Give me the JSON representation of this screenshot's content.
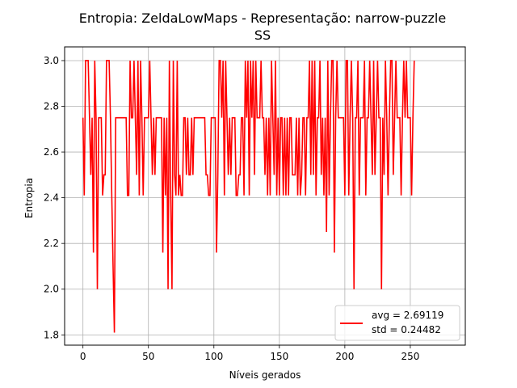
{
  "chart_data": {
    "type": "line",
    "title_line1": "Entropia: ZeldaLowMaps - Representação: narrow-puzzle",
    "title_line2": "SS",
    "xlabel": "Níveis gerados",
    "ylabel": "Entropia",
    "xlim": [
      -14,
      292
    ],
    "ylim": [
      1.755,
      3.06
    ],
    "xticks": [
      0,
      50,
      100,
      150,
      200,
      250
    ],
    "yticks": [
      1.8,
      2.0,
      2.2,
      2.4,
      2.6,
      2.8,
      3.0
    ],
    "grid": true,
    "legend_position": "lower right",
    "legend": {
      "line1": "avg = 2.69119",
      "line2": "std = 0.24482"
    },
    "series": [
      {
        "color": "#ff0000",
        "x_start": 0,
        "values": [
          2.75,
          2.41,
          3.0,
          3.0,
          3.0,
          2.75,
          2.5,
          2.75,
          2.16,
          3.0,
          2.75,
          2.0,
          2.75,
          2.75,
          2.75,
          2.41,
          2.5,
          2.5,
          3.0,
          3.0,
          3.0,
          2.75,
          2.41,
          2.1,
          1.81,
          2.75,
          2.75,
          2.75,
          2.75,
          2.75,
          2.75,
          2.75,
          2.75,
          2.75,
          2.41,
          2.41,
          3.0,
          2.75,
          2.75,
          3.0,
          2.75,
          2.5,
          3.0,
          2.41,
          3.0,
          2.75,
          2.41,
          2.75,
          2.75,
          2.75,
          2.75,
          3.0,
          2.75,
          2.5,
          2.75,
          2.5,
          2.75,
          2.75,
          2.75,
          2.75,
          2.75,
          2.16,
          2.75,
          2.41,
          2.75,
          2.0,
          3.0,
          2.41,
          2.0,
          3.0,
          2.5,
          2.41,
          3.0,
          2.41,
          2.5,
          2.41,
          2.41,
          2.75,
          2.75,
          2.5,
          2.75,
          2.5,
          2.5,
          2.75,
          2.5,
          2.75,
          2.75,
          2.75,
          2.75,
          2.75,
          2.75,
          2.75,
          2.75,
          2.75,
          2.5,
          2.5,
          2.41,
          2.41,
          2.75,
          2.75,
          2.75,
          2.75,
          2.16,
          2.5,
          3.0,
          3.0,
          2.75,
          3.0,
          2.41,
          3.0,
          2.75,
          2.5,
          2.75,
          2.5,
          2.75,
          2.75,
          2.75,
          2.41,
          2.41,
          2.5,
          2.5,
          2.75,
          2.75,
          2.41,
          3.0,
          2.75,
          3.0,
          2.41,
          3.0,
          2.75,
          3.0,
          2.5,
          3.0,
          2.75,
          2.75,
          2.75,
          3.0,
          2.75,
          2.75,
          2.5,
          2.75,
          2.41,
          2.75,
          2.41,
          3.0,
          2.75,
          2.5,
          3.0,
          2.41,
          2.75,
          2.41,
          2.75,
          2.75,
          2.41,
          2.75,
          2.41,
          2.75,
          2.41,
          2.75,
          2.75,
          2.5,
          2.5,
          2.5,
          2.75,
          2.41,
          2.75,
          2.41,
          2.5,
          2.75,
          2.75,
          2.41,
          2.75,
          2.75,
          3.0,
          2.5,
          3.0,
          2.5,
          3.0,
          2.41,
          2.75,
          2.75,
          3.0,
          2.5,
          2.75,
          2.41,
          2.75,
          2.25,
          3.0,
          2.41,
          2.75,
          3.0,
          3.0,
          2.16,
          2.75,
          3.0,
          2.75,
          2.75,
          2.75,
          2.75,
          2.75,
          2.41,
          3.0,
          3.0,
          2.41,
          2.75,
          3.0,
          2.75,
          2.0,
          2.75,
          2.75,
          3.0,
          2.41,
          2.75,
          2.75,
          2.75,
          3.0,
          2.41,
          2.75,
          2.75,
          3.0,
          2.75,
          2.5,
          3.0,
          2.5,
          2.75,
          3.0,
          2.75,
          2.75,
          2.0,
          2.75,
          2.5,
          3.0,
          2.75,
          2.41,
          2.75,
          3.0,
          3.0,
          2.5,
          2.75,
          3.0,
          2.75,
          2.75,
          2.75,
          2.41,
          2.75,
          3.0,
          2.75,
          3.0,
          2.75,
          2.75,
          2.75,
          2.41,
          2.75,
          3.0
        ]
      }
    ]
  }
}
